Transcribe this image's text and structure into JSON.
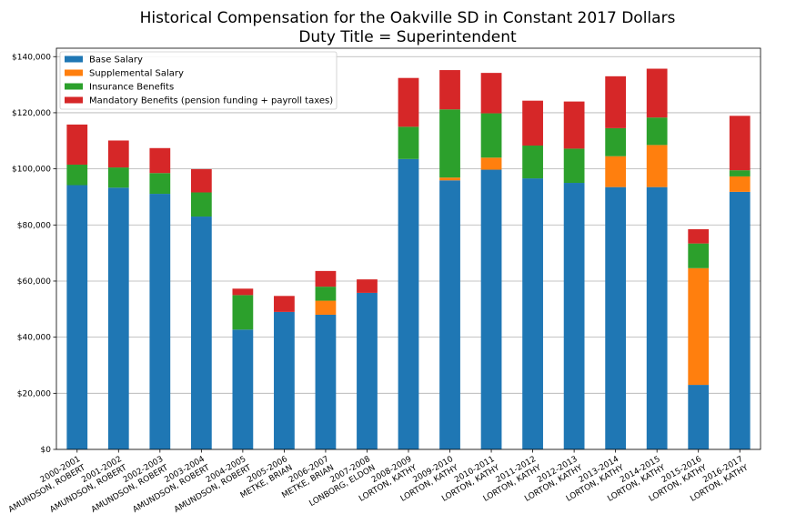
{
  "chart_data": {
    "type": "bar",
    "stacked": true,
    "title": "Historical Compensation for the Oakville SD in Constant 2017 Dollars",
    "subtitle": "Duty Title = Superintendent",
    "xlabel": "",
    "ylabel": "",
    "ylim": [
      0,
      143000
    ],
    "yticks": [
      "$0",
      "$20,000",
      "$40,000",
      "$60,000",
      "$80,000",
      "$100,000",
      "$120,000",
      "$140,000"
    ],
    "ytick_values": [
      0,
      20000,
      40000,
      60000,
      80000,
      100000,
      120000,
      140000
    ],
    "grid": "horizontal",
    "legend_position": "top-left",
    "categories": [
      [
        "2000-2001",
        "AMUNDSON, ROBERT"
      ],
      [
        "2001-2002",
        "AMUNDSON, ROBERT"
      ],
      [
        "2002-2003",
        "AMUNDSON, ROBERT"
      ],
      [
        "2003-2004",
        "AMUNDSON, ROBERT"
      ],
      [
        "2004-2005",
        "AMUNDSON, ROBERT"
      ],
      [
        "2005-2006",
        "METKE, BRIAN"
      ],
      [
        "2006-2007",
        "METKE, BRIAN"
      ],
      [
        "2007-2008",
        "LONBORG, ELDON"
      ],
      [
        "2008-2009",
        "LORTON, KATHY"
      ],
      [
        "2009-2010",
        "LORTON, KATHY"
      ],
      [
        "2010-2011",
        "LORTON, KATHY"
      ],
      [
        "2011-2012",
        "LORTON, KATHY"
      ],
      [
        "2012-2013",
        "LORTON, KATHY"
      ],
      [
        "2013-2014",
        "LORTON, KATHY"
      ],
      [
        "2014-2015",
        "LORTON, KATHY"
      ],
      [
        "2015-2016",
        "LORTON, KATHY"
      ],
      [
        "2016-2017",
        "LORTON, KATHY"
      ]
    ],
    "series": [
      {
        "name": "Base Salary",
        "color": "#1f77b4",
        "values": [
          94200,
          93300,
          91100,
          83000,
          42700,
          49000,
          48000,
          55800,
          103500,
          95900,
          99700,
          96600,
          95000,
          93500,
          93500,
          23000,
          91800
        ]
      },
      {
        "name": "Supplemental Salary",
        "color": "#ff7f0e",
        "values": [
          0,
          0,
          0,
          0,
          0,
          0,
          5000,
          0,
          0,
          1000,
          4300,
          0,
          0,
          11000,
          15000,
          41600,
          5500
        ]
      },
      {
        "name": "Insurance Benefits",
        "color": "#2ca02c",
        "values": [
          7300,
          7200,
          7400,
          8600,
          12300,
          0,
          5000,
          0,
          11500,
          24300,
          15800,
          11700,
          12200,
          10000,
          9800,
          8800,
          2200
        ]
      },
      {
        "name": "Mandatory Benefits (pension funding + payroll taxes)",
        "color": "#d62728",
        "values": [
          14300,
          9600,
          8900,
          8300,
          2300,
          5700,
          5600,
          4800,
          17400,
          14000,
          14400,
          16000,
          16800,
          18500,
          17400,
          5100,
          19400
        ]
      }
    ]
  }
}
